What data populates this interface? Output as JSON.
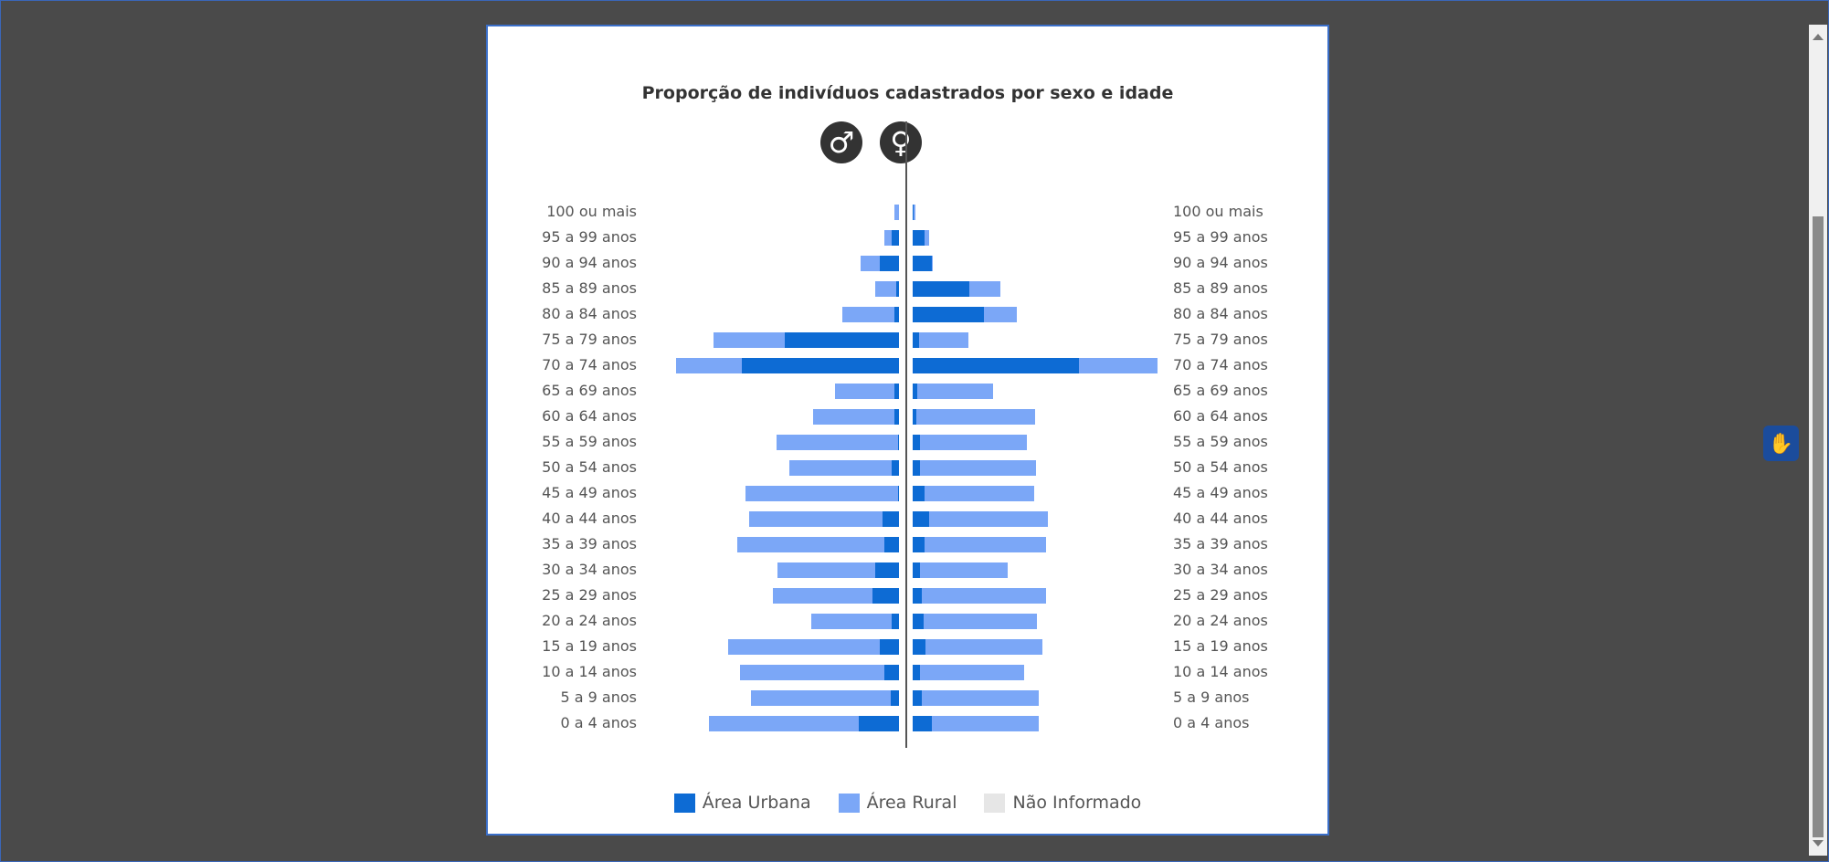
{
  "chart_data": {
    "type": "bar",
    "title": "Proporção de indivíduos cadastrados por sexo e idade",
    "categories": [
      "100 ou mais",
      "95 a 99 anos",
      "90 a 94 anos",
      "85 a 89 anos",
      "80 a 84 anos",
      "75 a 79 anos",
      "70 a 74 anos",
      "65 a 69 anos",
      "60 a 64 anos",
      "55 a 59 anos",
      "50 a 54 anos",
      "45 a 49 anos",
      "40 a 44 anos",
      "35 a 39 anos",
      "30 a 34 anos",
      "25 a 29 anos",
      "20 a 24 anos",
      "15 a 19 anos",
      "10 a 14 anos",
      "5 a 9 anos",
      "0 a 4 anos"
    ],
    "male_icon": "♂",
    "female_icon": "♀",
    "series": [
      {
        "name": "Área Urbana",
        "color": "#0d6bd4",
        "key": "urbana"
      },
      {
        "name": "Área Rural",
        "color": "#7ba7f7",
        "key": "rural"
      },
      {
        "name": "Não Informado",
        "color": "#e6e6e6",
        "key": "nao_informado"
      }
    ],
    "male": {
      "urbana": [
        0.0,
        0.3,
        0.8,
        0.1,
        0.2,
        4.8,
        6.6,
        0.2,
        0.2,
        0.05,
        0.3,
        0.05,
        0.7,
        0.6,
        1.0,
        1.1,
        0.3,
        0.8,
        0.6,
        0.35,
        1.7
      ],
      "rural": [
        0.2,
        0.3,
        0.8,
        0.9,
        2.2,
        3.0,
        2.8,
        2.5,
        3.4,
        5.1,
        4.3,
        6.4,
        5.6,
        6.2,
        4.1,
        4.2,
        3.4,
        6.4,
        6.1,
        5.9,
        6.3
      ],
      "nao_informado": [
        0,
        0,
        0,
        0,
        0,
        0,
        0,
        0,
        0,
        0,
        0,
        0,
        0,
        0,
        0,
        0,
        0,
        0,
        0,
        0,
        0
      ]
    },
    "female": {
      "urbana": [
        0.05,
        0.5,
        0.8,
        2.4,
        3.0,
        0.25,
        7.0,
        0.2,
        0.15,
        0.3,
        0.3,
        0.5,
        0.7,
        0.5,
        0.3,
        0.4,
        0.45,
        0.55,
        0.3,
        0.4,
        0.8
      ],
      "rural": [
        0.05,
        0.2,
        0.05,
        1.3,
        1.4,
        2.1,
        3.3,
        3.2,
        5.0,
        4.5,
        4.9,
        4.6,
        5.0,
        5.1,
        3.7,
        5.2,
        4.8,
        4.9,
        4.4,
        4.9,
        4.5
      ],
      "nao_informado": [
        0,
        0,
        0,
        0,
        0,
        0,
        0,
        0,
        0,
        0,
        0,
        0,
        0,
        0,
        0,
        0,
        0,
        0,
        0,
        0,
        0
      ]
    },
    "xlim": [
      0,
      10.5
    ],
    "legend_position": "bottom",
    "grid": false
  }
}
